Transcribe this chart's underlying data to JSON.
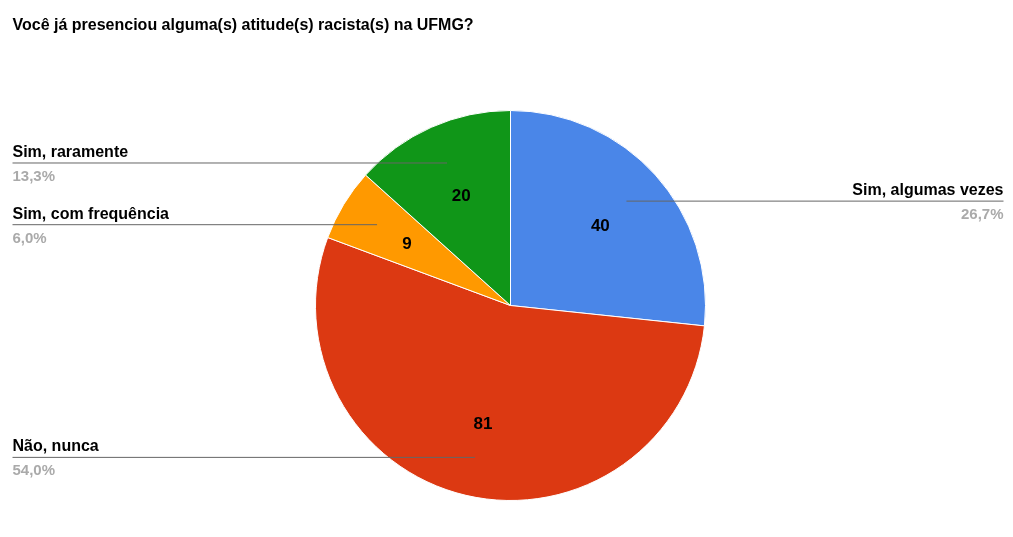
{
  "chart_data": {
    "type": "pie",
    "title": "Você já presenciou alguma(s) atitude(s) racista(s) na UFMG?",
    "categories": [
      "Sim, algumas vezes",
      "Não, nunca",
      "Sim, com frequência",
      "Sim, raramente"
    ],
    "values": [
      40,
      81,
      9,
      20
    ],
    "colors": [
      "#4a86e8",
      "#dc3912",
      "#ff9900",
      "#109618"
    ],
    "data_labels": true,
    "annotations": [
      "26,7%",
      "54,0%",
      "6,0%",
      "13,3%"
    ]
  }
}
